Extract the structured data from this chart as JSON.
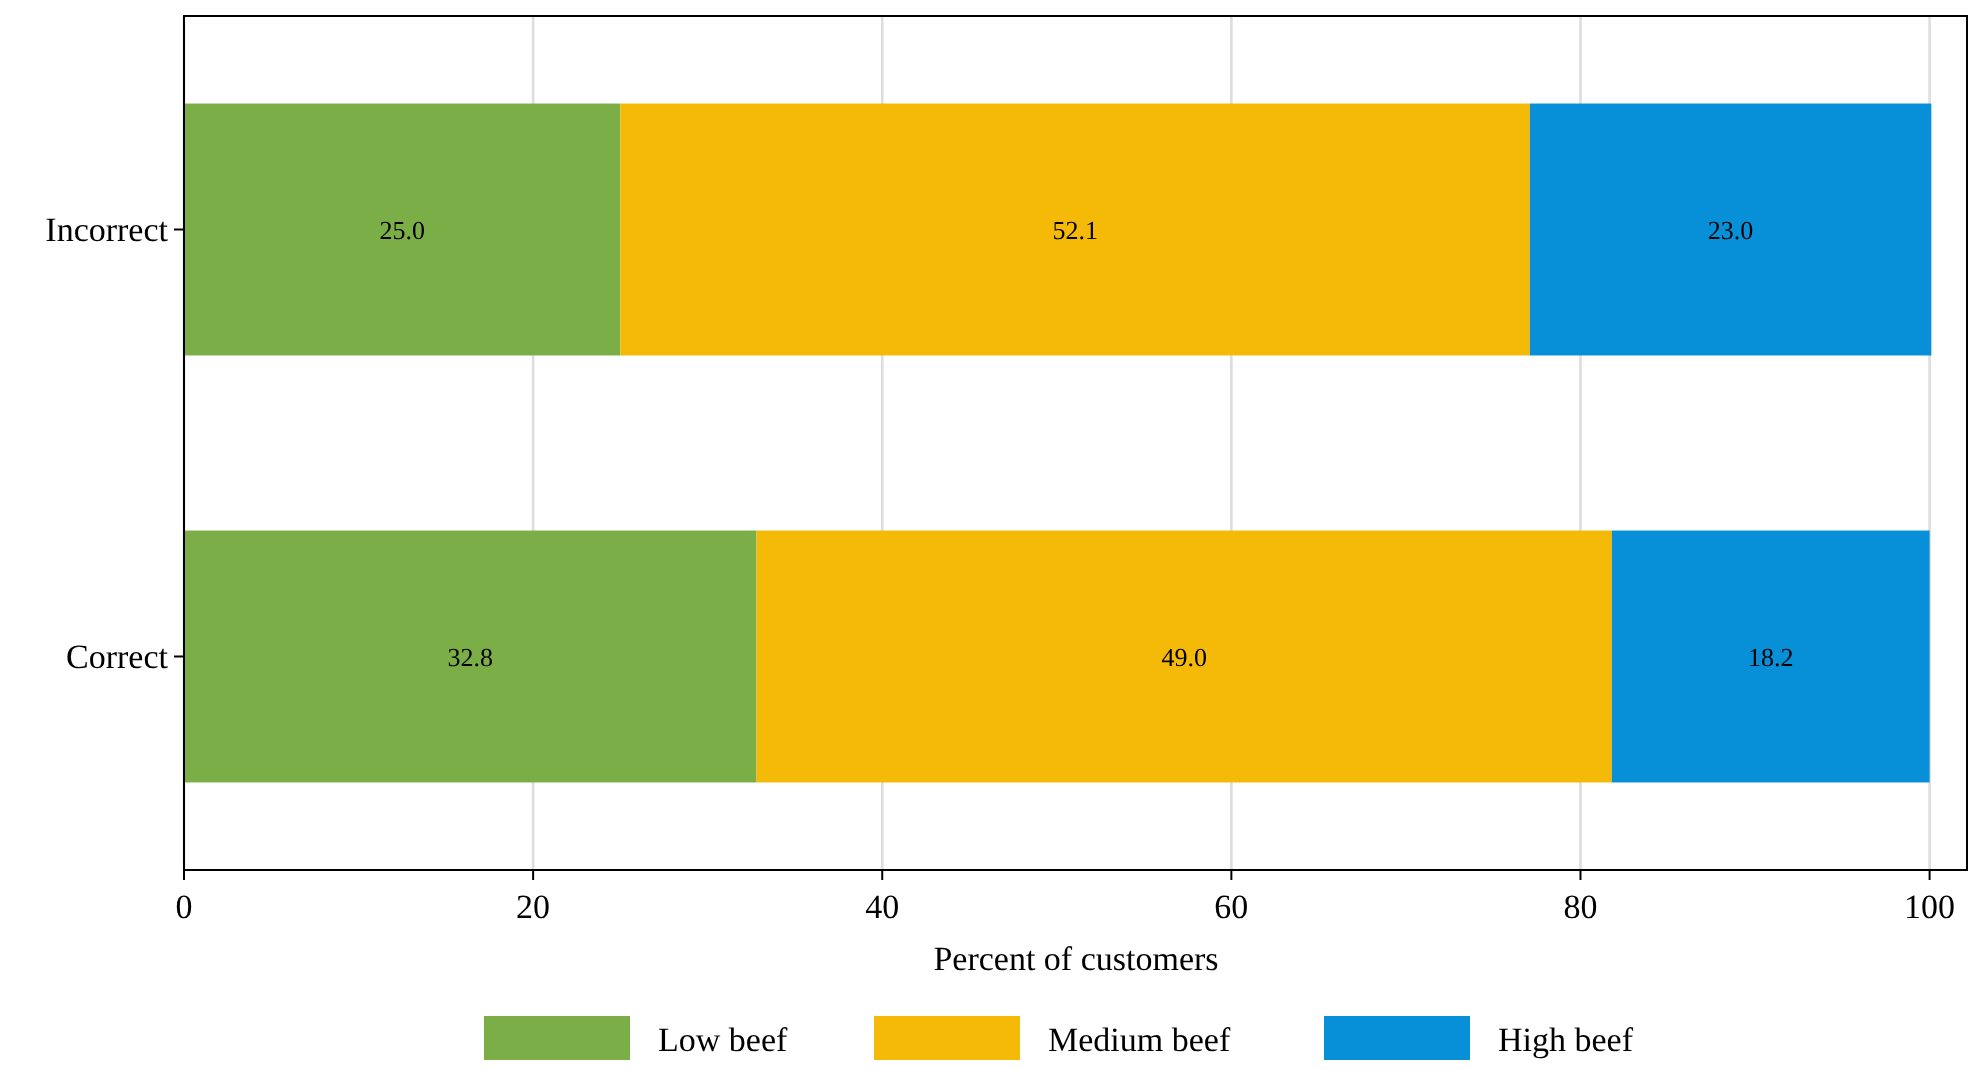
{
  "chart_data": {
    "type": "bar",
    "orientation": "horizontal",
    "stacked": true,
    "xlabel": "Percent of customers",
    "categories": [
      "Incorrect",
      "Correct"
    ],
    "series": [
      {
        "name": "Low beef",
        "color": "#7cae47",
        "values": [
          25.0,
          32.8
        ],
        "value_labels": [
          "25.0",
          "32.8"
        ]
      },
      {
        "name": "Medium beef",
        "color": "#f5b908",
        "values": [
          52.1,
          49.0
        ],
        "value_labels": [
          "52.1",
          "49.0"
        ]
      },
      {
        "name": "High beef",
        "color": "#0790d8",
        "values": [
          23.0,
          18.2
        ],
        "value_labels": [
          "23.0",
          "18.2"
        ]
      }
    ],
    "xlim": [
      0,
      102.2
    ],
    "xticks": [
      0,
      20,
      40,
      60,
      80,
      100
    ],
    "grid": "x",
    "legend": "bottom"
  }
}
